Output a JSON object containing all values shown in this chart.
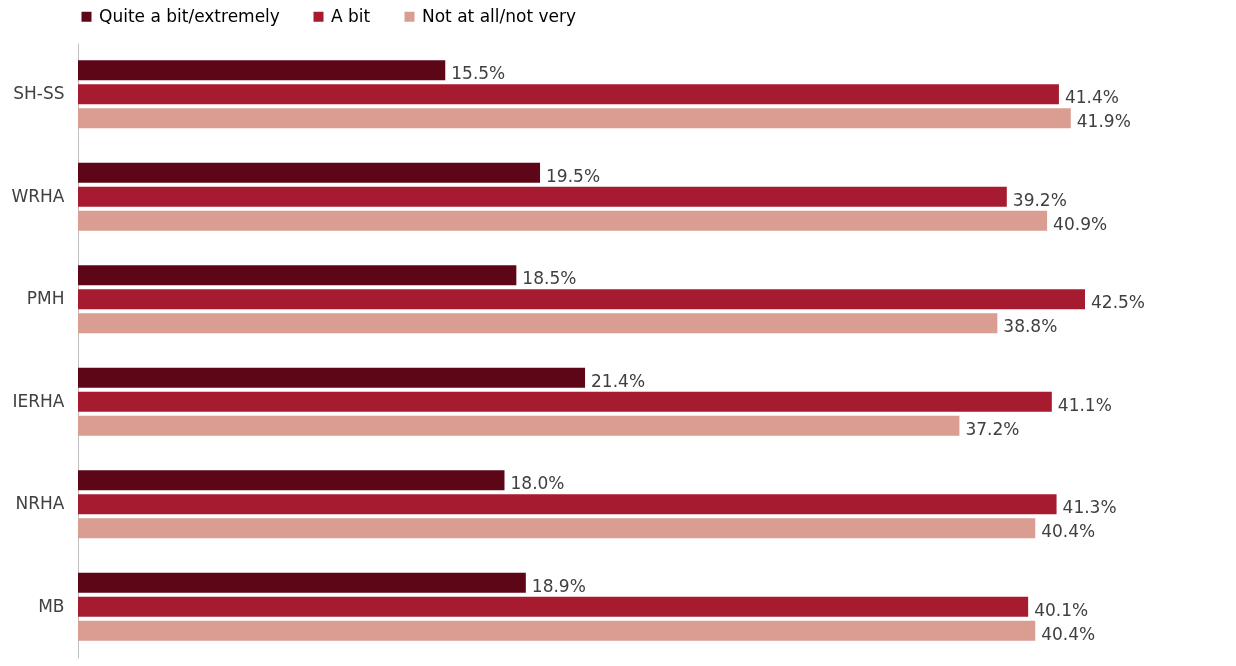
{
  "chart_data": {
    "type": "bar",
    "orientation": "horizontal",
    "legend": "top",
    "categories": [
      "SH-SS",
      "WRHA",
      "PMH",
      "IERHA",
      "NRHA",
      "MB"
    ],
    "series": [
      {
        "name": "Quite a bit/extremely",
        "color": "#5c0617",
        "values": [
          15.5,
          19.5,
          18.5,
          21.4,
          18.0,
          18.9
        ],
        "value_labels": [
          "15.5%",
          "19.5%",
          "18.5%",
          "21.4%",
          "18.0%",
          "18.9%"
        ]
      },
      {
        "name": "A bit",
        "color": "#a61b30",
        "values": [
          41.4,
          39.2,
          42.5,
          41.1,
          41.3,
          40.1
        ],
        "value_labels": [
          "41.4%",
          "39.2%",
          "42.5%",
          "41.1%",
          "41.3%",
          "40.1%"
        ]
      },
      {
        "name": "Not at all/not very",
        "color": "#d99d91",
        "values": [
          41.9,
          40.9,
          38.8,
          37.2,
          40.4,
          40.4
        ],
        "value_labels": [
          "41.9%",
          "40.9%",
          "38.8%",
          "37.2%",
          "40.4%",
          "40.4%"
        ]
      }
    ]
  }
}
